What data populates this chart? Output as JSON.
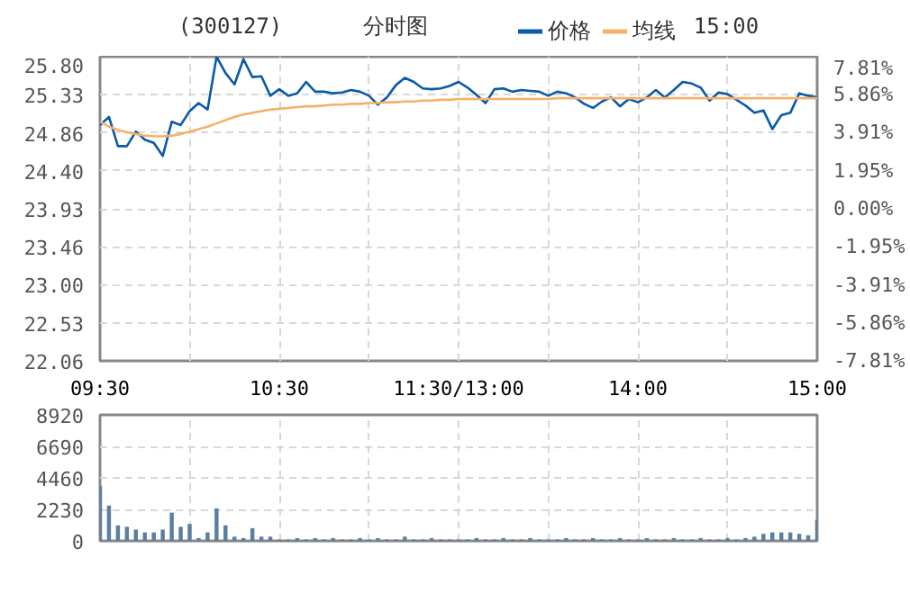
{
  "chart_data": [
    {
      "type": "line",
      "title": "(300127)",
      "subtitle": "分时图",
      "annotations": [
        "15:00"
      ],
      "legend": "top",
      "grid": true,
      "categories": [
        "09:30",
        null,
        null,
        null,
        null,
        null,
        null,
        null,
        null,
        null,
        null,
        null,
        null,
        null,
        null,
        null,
        null,
        null,
        null,
        null,
        "10:30",
        null,
        null,
        null,
        null,
        null,
        null,
        null,
        null,
        null,
        null,
        null,
        null,
        null,
        null,
        null,
        null,
        null,
        null,
        null,
        "11:30/13:00",
        null,
        null,
        null,
        null,
        null,
        null,
        null,
        null,
        null,
        null,
        null,
        null,
        null,
        null,
        null,
        null,
        null,
        null,
        null,
        "14:00",
        null,
        null,
        null,
        null,
        null,
        null,
        null,
        null,
        null,
        null,
        null,
        null,
        null,
        null,
        null,
        null,
        null,
        null,
        null,
        "15:00"
      ],
      "ylim": [
        22.06,
        25.8
      ],
      "yticks": [
        {
          "value": 22.06,
          "label": "22.06"
        },
        {
          "value": 22.53,
          "label": "22.53"
        },
        {
          "value": 23.0,
          "label": "23.00"
        },
        {
          "value": 23.46,
          "label": "23.46"
        },
        {
          "value": 23.93,
          "label": "23.93"
        },
        {
          "value": 24.4,
          "label": "24.40"
        },
        {
          "value": 24.86,
          "label": "24.86"
        },
        {
          "value": 25.33,
          "label": "25.33"
        },
        {
          "value": 25.8,
          "label": "25.80"
        }
      ],
      "y2lim": [
        -7.81,
        7.81
      ],
      "y2ticks": [
        {
          "value": -7.81,
          "label": "-7.81%"
        },
        {
          "value": -5.86,
          "label": "-5.86%"
        },
        {
          "value": -3.91,
          "label": "-3.91%"
        },
        {
          "value": -1.95,
          "label": "-1.95%"
        },
        {
          "value": 0,
          "label": "0.00%"
        },
        {
          "value": 1.95,
          "label": "1.95%"
        },
        {
          "value": 3.91,
          "label": "3.91%"
        },
        {
          "value": 5.86,
          "label": "5.86%"
        },
        {
          "value": 7.81,
          "label": "7.81%"
        }
      ],
      "series": [
        {
          "name": "价格",
          "color": "#0a5aa8",
          "values": [
            24.96,
            25.06,
            24.7,
            24.7,
            24.88,
            24.78,
            24.74,
            24.58,
            25.0,
            24.96,
            25.13,
            25.23,
            25.15,
            25.8,
            25.6,
            25.46,
            25.77,
            25.55,
            25.56,
            25.32,
            25.4,
            25.32,
            25.35,
            25.49,
            25.37,
            25.37,
            25.35,
            25.36,
            25.39,
            25.37,
            25.32,
            25.21,
            25.3,
            25.45,
            25.54,
            25.49,
            25.41,
            25.4,
            25.41,
            25.44,
            25.49,
            25.42,
            25.33,
            25.23,
            25.4,
            25.41,
            25.37,
            25.39,
            25.38,
            25.37,
            25.32,
            25.37,
            25.35,
            25.3,
            25.22,
            25.17,
            25.25,
            25.3,
            25.19,
            25.28,
            25.24,
            25.3,
            25.39,
            25.3,
            25.39,
            25.49,
            25.47,
            25.42,
            25.26,
            25.36,
            25.34,
            25.27,
            25.2,
            25.11,
            25.14,
            24.91,
            25.08,
            25.11,
            25.35,
            25.32,
            25.3
          ]
        },
        {
          "name": "均线",
          "color": "#f5b06a",
          "values": [
            25.0,
            24.94,
            24.9,
            24.87,
            24.85,
            24.83,
            24.82,
            24.82,
            24.83,
            24.85,
            24.88,
            24.91,
            24.94,
            24.98,
            25.02,
            25.06,
            25.09,
            25.11,
            25.13,
            25.15,
            25.16,
            25.17,
            25.18,
            25.19,
            25.19,
            25.2,
            25.21,
            25.21,
            25.22,
            25.22,
            25.23,
            25.23,
            25.24,
            25.24,
            25.25,
            25.25,
            25.26,
            25.26,
            25.27,
            25.27,
            25.28,
            25.28,
            25.28,
            25.28,
            25.28,
            25.28,
            25.28,
            25.28,
            25.28,
            25.28,
            25.28,
            25.29,
            25.29,
            25.29,
            25.29,
            25.29,
            25.29,
            25.29,
            25.29,
            25.29,
            25.29,
            25.29,
            25.29,
            25.29,
            25.29,
            25.29,
            25.29,
            25.29,
            25.29,
            25.29,
            25.29,
            25.29,
            25.29,
            25.29,
            25.29,
            25.29,
            25.29,
            25.29,
            25.29,
            25.29,
            25.29
          ]
        }
      ]
    },
    {
      "type": "bar",
      "grid": true,
      "color": "#5b7fa3",
      "categories": [
        null,
        null,
        null,
        null,
        null,
        null,
        null,
        null,
        null,
        null,
        null,
        null,
        null,
        null,
        null,
        null,
        null,
        null,
        null,
        null,
        null,
        null,
        null,
        null,
        null,
        null,
        null,
        null,
        null,
        null,
        null,
        null,
        null,
        null,
        null,
        null,
        null,
        null,
        null,
        null,
        null,
        null,
        null,
        null,
        null,
        null,
        null,
        null,
        null,
        null,
        null,
        null,
        null,
        null,
        null,
        null,
        null,
        null,
        null,
        null,
        null,
        null,
        null,
        null,
        null,
        null,
        null,
        null,
        null,
        null,
        null,
        null,
        null,
        null,
        null,
        null,
        null,
        null,
        null,
        null,
        null
      ],
      "ylim": [
        0,
        8920
      ],
      "yticks": [
        0,
        2230,
        4460,
        6690,
        8920
      ],
      "values": [
        3900,
        2500,
        1100,
        1000,
        800,
        600,
        600,
        800,
        2000,
        1000,
        1200,
        200,
        600,
        2300,
        1100,
        300,
        200,
        900,
        300,
        300,
        100,
        100,
        200,
        100,
        200,
        100,
        200,
        100,
        100,
        200,
        100,
        200,
        100,
        100,
        300,
        100,
        100,
        200,
        100,
        100,
        100,
        100,
        200,
        100,
        100,
        200,
        100,
        100,
        200,
        100,
        100,
        100,
        200,
        100,
        100,
        200,
        100,
        100,
        200,
        100,
        100,
        200,
        100,
        100,
        200,
        100,
        100,
        200,
        100,
        100,
        200,
        100,
        200,
        300,
        500,
        600,
        600,
        600,
        500,
        400,
        1500
      ]
    }
  ]
}
